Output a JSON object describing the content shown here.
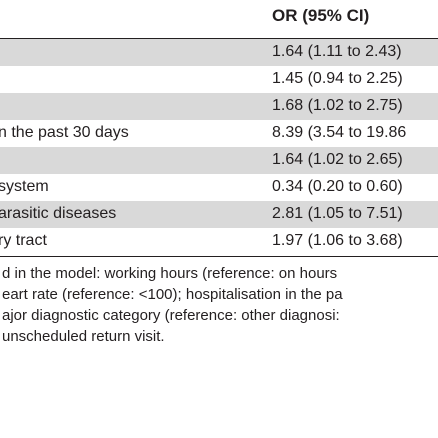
{
  "table": {
    "column_header": "OR (95% CI)",
    "rows": [
      {
        "label": "",
        "value": "1.64 (1.11 to 2.43)",
        "shaded": true
      },
      {
        "label": "",
        "value": "1.45 (0.94 to 2.25)",
        "shaded": false
      },
      {
        "label": "",
        "value": "1.68 (1.02 to 2.75)",
        "shaded": true
      },
      {
        "label": "n the past 30 days",
        "value": "8.39 (3.54 to 19.86",
        "shaded": false
      },
      {
        "label": "",
        "value": "1.64 (1.02 to 2.65)",
        "shaded": true
      },
      {
        "label": "system",
        "value": "0.34 (0.20 to 0.60)",
        "shaded": false
      },
      {
        "label": "arasitic diseases",
        "value": "2.81 (1.05 to 7.51)",
        "shaded": true
      },
      {
        "label": "ry tract",
        "value": "1.97 (1.06 to 3.68)",
        "shaded": false
      }
    ]
  },
  "footnotes": [
    "d in the model: working hours (reference: on hours",
    "eart rate (reference: <100); hospitalisation in the pa",
    "ajor diagnostic category (reference: other diagnosi:",
    "unscheduled return visit."
  ]
}
